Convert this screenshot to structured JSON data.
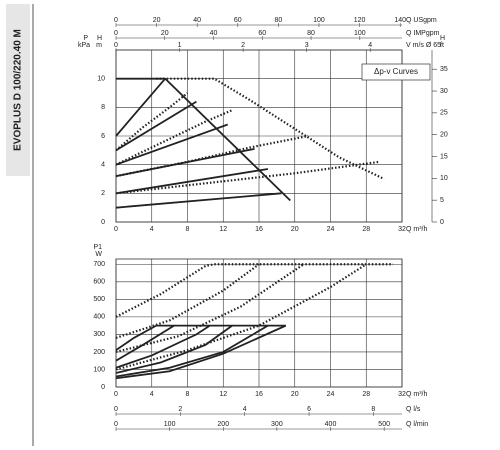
{
  "side_label": "EVOPLUS D 100/220.40 M",
  "chart_data": [
    {
      "type": "line",
      "legend_box": "Δp-v Curves",
      "color": "#222222",
      "grid": true,
      "p_label": "P",
      "p_unit": "kPa",
      "y_label": "H",
      "y_unit": "m",
      "y2_label": "H",
      "y2_unit": "ft",
      "x_label": "Q m³/h",
      "xlim": [
        0,
        32
      ],
      "xticks": [
        0,
        4,
        8,
        12,
        16,
        20,
        24,
        28,
        32
      ],
      "ylim": [
        0,
        12
      ],
      "yticks": [
        0,
        2,
        4,
        6,
        8,
        10
      ],
      "y2lim": [
        0,
        39.4
      ],
      "y2ticks": [
        0,
        5,
        10,
        15,
        20,
        25,
        30,
        35
      ],
      "top_axes": [
        {
          "label": "Q USgpm",
          "lim": [
            0,
            140.9
          ],
          "ticks": [
            0,
            20,
            40,
            60,
            80,
            100,
            120,
            140
          ]
        },
        {
          "label": "Q IMPgpm",
          "lim": [
            0,
            117.3
          ],
          "ticks": [
            0,
            20,
            40,
            60,
            80,
            100
          ]
        },
        {
          "label": "V m/s Ø 65",
          "lim": [
            0,
            4.5
          ],
          "ticks": [
            0,
            1,
            2,
            3,
            4
          ]
        }
      ],
      "series": [
        {
          "dash": false,
          "x": [
            0,
            18.5
          ],
          "values": [
            1,
            2
          ]
        },
        {
          "dash": false,
          "x": [
            0,
            17
          ],
          "values": [
            2,
            3.7
          ]
        },
        {
          "dash": false,
          "x": [
            0,
            15.5
          ],
          "values": [
            3.2,
            5.1
          ]
        },
        {
          "dash": false,
          "x": [
            0,
            12.5
          ],
          "values": [
            4,
            6.8
          ]
        },
        {
          "dash": false,
          "x": [
            0,
            9
          ],
          "values": [
            5,
            8.4
          ]
        },
        {
          "dash": false,
          "x": [
            0,
            5.5
          ],
          "values": [
            6,
            10
          ]
        },
        {
          "dash": false,
          "x": [
            0,
            5.5,
            19.5
          ],
          "values": [
            10,
            10,
            1.5
          ]
        },
        {
          "dash": true,
          "x": [
            0,
            10,
            20,
            29.5
          ],
          "values": [
            2,
            2.7,
            3.4,
            4.2
          ]
        },
        {
          "dash": true,
          "x": [
            0,
            8,
            15,
            21.5
          ],
          "values": [
            3.2,
            4.2,
            5.2,
            6
          ]
        },
        {
          "dash": true,
          "x": [
            0,
            5,
            10,
            13
          ],
          "values": [
            4,
            5.5,
            7,
            7.8
          ]
        },
        {
          "dash": true,
          "x": [
            0,
            3,
            6,
            8
          ],
          "values": [
            5,
            6.6,
            8,
            9
          ]
        },
        {
          "dash": true,
          "x": [
            4.5,
            11,
            15,
            20,
            25,
            30
          ],
          "values": [
            10,
            10,
            8.5,
            6.5,
            4.5,
            3
          ]
        }
      ]
    },
    {
      "type": "line",
      "color": "#222222",
      "grid": true,
      "y_label": "P1",
      "y_unit": "W",
      "x_label": "Q m³/h",
      "xlim": [
        0,
        32
      ],
      "xticks": [
        0,
        4,
        8,
        12,
        16,
        20,
        24,
        28,
        32
      ],
      "ylim": [
        0,
        730
      ],
      "yticks": [
        0,
        100,
        200,
        300,
        400,
        500,
        600,
        700
      ],
      "bottom_axes": [
        {
          "label": "Q l/s",
          "lim": [
            0,
            8.89
          ],
          "ticks": [
            0,
            2,
            4,
            6,
            8
          ]
        },
        {
          "label": "Q l/min",
          "lim": [
            0,
            533.3
          ],
          "ticks": [
            0,
            100,
            200,
            300,
            400,
            500
          ]
        }
      ],
      "series": [
        {
          "dash": false,
          "x": [
            0,
            2,
            4.5
          ],
          "values": [
            210,
            280,
            350
          ]
        },
        {
          "dash": false,
          "x": [
            0,
            3,
            6.5
          ],
          "values": [
            150,
            240,
            350
          ]
        },
        {
          "dash": false,
          "x": [
            0,
            4,
            9,
            10.5
          ],
          "values": [
            110,
            180,
            300,
            350
          ]
        },
        {
          "dash": false,
          "x": [
            0,
            5,
            10,
            13
          ],
          "values": [
            80,
            140,
            240,
            350
          ]
        },
        {
          "dash": false,
          "x": [
            0,
            6,
            12,
            17
          ],
          "values": [
            60,
            110,
            200,
            350
          ]
        },
        {
          "dash": false,
          "x": [
            0,
            6,
            12,
            19
          ],
          "values": [
            50,
            90,
            190,
            350
          ]
        },
        {
          "dash": false,
          "x": [
            4.5,
            19
          ],
          "values": [
            350,
            350
          ]
        },
        {
          "dash": true,
          "x": [
            0,
            5,
            10,
            11
          ],
          "values": [
            400,
            530,
            690,
            700
          ]
        },
        {
          "dash": true,
          "x": [
            0,
            6,
            12,
            16
          ],
          "values": [
            280,
            380,
            550,
            700
          ]
        },
        {
          "dash": true,
          "x": [
            0,
            7,
            14,
            21
          ],
          "values": [
            200,
            290,
            460,
            700
          ]
        },
        {
          "dash": true,
          "x": [
            0,
            8,
            16,
            24,
            28
          ],
          "values": [
            100,
            210,
            350,
            570,
            700
          ]
        },
        {
          "dash": true,
          "x": [
            11,
            31
          ],
          "values": [
            700,
            700
          ]
        }
      ]
    }
  ]
}
